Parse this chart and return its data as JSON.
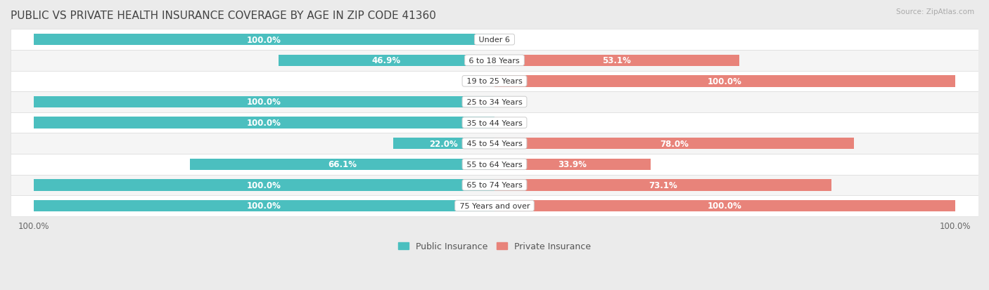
{
  "title": "PUBLIC VS PRIVATE HEALTH INSURANCE COVERAGE BY AGE IN ZIP CODE 41360",
  "source": "Source: ZipAtlas.com",
  "categories": [
    "Under 6",
    "6 to 18 Years",
    "19 to 25 Years",
    "25 to 34 Years",
    "35 to 44 Years",
    "45 to 54 Years",
    "55 to 64 Years",
    "65 to 74 Years",
    "75 Years and over"
  ],
  "public_values": [
    100.0,
    46.9,
    0.0,
    100.0,
    100.0,
    22.0,
    66.1,
    100.0,
    100.0
  ],
  "private_values": [
    0.0,
    53.1,
    100.0,
    0.0,
    0.0,
    78.0,
    33.9,
    73.1,
    100.0
  ],
  "public_color": "#4bbfbf",
  "private_color": "#e8837a",
  "background_color": "#ebebeb",
  "row_color_even": "#ffffff",
  "row_color_odd": "#f5f5f5",
  "bar_height": 0.55,
  "title_fontsize": 11,
  "label_fontsize": 8.5,
  "category_fontsize": 8.0,
  "legend_fontsize": 9,
  "figsize": [
    14.06,
    4.14
  ],
  "dpi": 100
}
